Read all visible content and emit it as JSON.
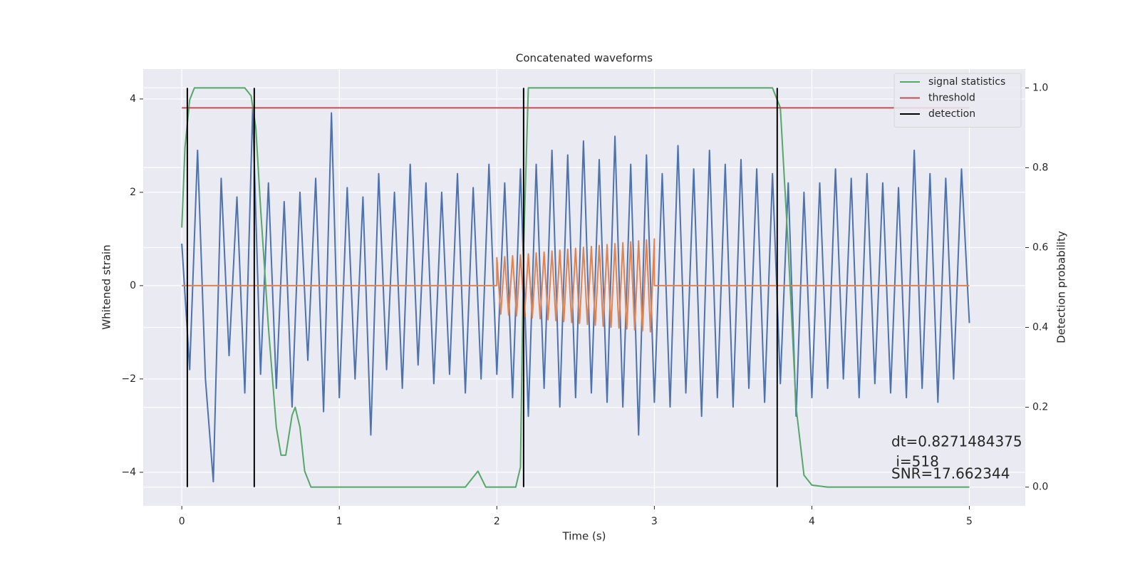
{
  "chart_data": {
    "type": "line",
    "title": "Concatenated waveforms",
    "xlabel": "Time (s)",
    "ylabel": "Whitened strain",
    "y2label": "Detection probability",
    "xlim": [
      -0.245,
      5.355
    ],
    "ylim": [
      -4.72,
      4.64
    ],
    "y2lim": [
      -0.047,
      1.047
    ],
    "xticks": [
      0,
      1,
      2,
      3,
      4,
      5
    ],
    "yticks": [
      {
        "value": -4,
        "label": "−4"
      },
      {
        "value": -2,
        "label": "−2"
      },
      0,
      2,
      4
    ],
    "y2ticks": [
      {
        "value": 0,
        "label": "0.0"
      },
      {
        "value": 0.2,
        "label": "0.2"
      },
      {
        "value": 0.4,
        "label": "0.4"
      },
      {
        "value": 0.6,
        "label": "0.6"
      },
      {
        "value": 0.8,
        "label": "0.8"
      },
      {
        "value": 1,
        "label": "1.0"
      }
    ],
    "grid": true,
    "legend": "upper right",
    "annotations": [
      "dt=0.8271484375",
      " i=518",
      "SNR=17.662344"
    ],
    "series": [
      {
        "color": "#4c72b0",
        "x": [
          0,
          0.05,
          0.1,
          0.15,
          0.2,
          0.25,
          0.3,
          0.35,
          0.4,
          0.45,
          0.5,
          0.55,
          0.6,
          0.65,
          0.7,
          0.75,
          0.8,
          0.85,
          0.9,
          0.95,
          1,
          1.05,
          1.1,
          1.15,
          1.2,
          1.25,
          1.3,
          1.35,
          1.4,
          1.45,
          1.5,
          1.55,
          1.6,
          1.65,
          1.7,
          1.75,
          1.8,
          1.85,
          1.9,
          1.95,
          2,
          2.05,
          2.1,
          2.15,
          2.2,
          2.25,
          2.3,
          2.35,
          2.4,
          2.45,
          2.5,
          2.55,
          2.6,
          2.65,
          2.7,
          2.75,
          2.8,
          2.85,
          2.9,
          2.95,
          3,
          3.05,
          3.1,
          3.15,
          3.2,
          3.25,
          3.3,
          3.35,
          3.4,
          3.45,
          3.5,
          3.55,
          3.6,
          3.65,
          3.7,
          3.75,
          3.8,
          3.85,
          3.9,
          3.95,
          4,
          4.05,
          4.1,
          4.15,
          4.2,
          4.25,
          4.3,
          4.35,
          4.4,
          4.45,
          4.5,
          4.55,
          4.6,
          4.65,
          4.7,
          4.75,
          4.8,
          4.85,
          4.9,
          4.95,
          5
        ],
        "values": [
          0.9,
          -1.8,
          2.9,
          -2.0,
          -4.2,
          2.3,
          -1.5,
          1.9,
          -2.3,
          3.8,
          -1.9,
          2.2,
          -2.2,
          1.8,
          -2.6,
          2.0,
          -1.6,
          2.3,
          -2.7,
          3.7,
          -2.4,
          2.1,
          -2.0,
          1.9,
          -3.2,
          2.4,
          -1.8,
          2.0,
          -2.2,
          2.6,
          -1.7,
          2.2,
          -2.1,
          2.0,
          -1.9,
          2.4,
          -2.3,
          2.1,
          -2.0,
          2.6,
          -1.9,
          2.2,
          -2.4,
          2.5,
          -2.8,
          2.6,
          -2.2,
          2.9,
          -2.6,
          2.8,
          -2.4,
          3.1,
          -2.3,
          2.7,
          -2.5,
          3.2,
          -2.6,
          2.6,
          -3.2,
          2.8,
          -2.5,
          2.4,
          -2.6,
          3.0,
          -2.3,
          2.5,
          -2.8,
          2.9,
          -2.4,
          2.6,
          -2.6,
          2.7,
          -2.2,
          2.5,
          -2.5,
          2.4,
          -2.1,
          2.2,
          -2.8,
          2.0,
          -2.4,
          2.2,
          -2.2,
          2.5,
          -2.0,
          2.3,
          -2.4,
          2.4,
          -2.1,
          2.2,
          -2.3,
          2.1,
          -2.4,
          2.9,
          -2.2,
          2.4,
          -2.5,
          2.3,
          -2.0,
          2.5,
          -0.8
        ]
      },
      {
        "color": "#dd8452",
        "x": [
          0,
          2,
          2,
          2.025,
          2.05,
          2.075,
          2.1,
          2.125,
          2.15,
          2.175,
          2.2,
          2.225,
          2.25,
          2.275,
          2.3,
          2.325,
          2.35,
          2.375,
          2.4,
          2.425,
          2.45,
          2.475,
          2.5,
          2.525,
          2.55,
          2.575,
          2.6,
          2.625,
          2.65,
          2.675,
          2.7,
          2.725,
          2.75,
          2.775,
          2.8,
          2.825,
          2.85,
          2.875,
          2.9,
          2.925,
          2.95,
          2.975,
          3,
          3,
          5
        ],
        "values": [
          0,
          0,
          0.6,
          -0.61,
          0.62,
          -0.63,
          0.64,
          -0.65,
          0.66,
          -0.67,
          0.68,
          -0.69,
          0.7,
          -0.71,
          0.72,
          -0.73,
          0.74,
          -0.75,
          0.76,
          -0.77,
          0.78,
          -0.79,
          0.8,
          -0.81,
          0.82,
          -0.83,
          0.84,
          -0.85,
          0.86,
          -0.87,
          0.88,
          -0.89,
          0.9,
          -0.91,
          0.92,
          -0.93,
          0.94,
          -0.95,
          0.96,
          -0.97,
          0.98,
          -0.99,
          1.0,
          0,
          0
        ]
      },
      {
        "name": "signal statistics",
        "color": "#55a868",
        "axis": "y2",
        "x": [
          0,
          0.02,
          0.05,
          0.08,
          0.4,
          0.44,
          0.47,
          0.5,
          0.55,
          0.6,
          0.63,
          0.66,
          0.7,
          0.72,
          0.75,
          0.78,
          0.82,
          1,
          1.8,
          1.88,
          1.93,
          2.12,
          2.15,
          2.17,
          2.2,
          3.75,
          3.8,
          3.85,
          3.9,
          3.95,
          4,
          4.1,
          5
        ],
        "values": [
          0.65,
          0.85,
          0.97,
          1.0,
          1.0,
          0.98,
          0.9,
          0.7,
          0.4,
          0.15,
          0.08,
          0.08,
          0.18,
          0.2,
          0.15,
          0.04,
          0.0,
          0.0,
          0.0,
          0.04,
          0.0,
          0.0,
          0.05,
          0.6,
          1.0,
          1.0,
          0.95,
          0.6,
          0.2,
          0.03,
          0.005,
          0.0,
          0.0
        ]
      },
      {
        "name": "threshold",
        "color": "#c44e52",
        "axis": "y2",
        "x": [
          0,
          5
        ],
        "values": [
          0.95,
          0.95
        ]
      },
      {
        "name": "detection",
        "color": "#000000",
        "axis": "y2",
        "x": [
          0.035,
          0.46,
          2.17,
          3.78
        ],
        "span": [
          0,
          1
        ]
      }
    ]
  }
}
